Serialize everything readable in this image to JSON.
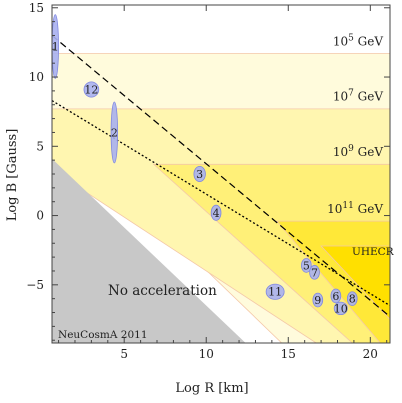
{
  "chart_data": {
    "type": "scatter",
    "xlabel": "Log R [km]",
    "ylabel": "Log B [Gauss]",
    "xlim": [
      0.6,
      21.2
    ],
    "ylim": [
      -9.2,
      15.2
    ],
    "x_ticks": [
      "5",
      "10",
      "15",
      "20"
    ],
    "y_ticks": [
      "15",
      "10",
      "5",
      "0",
      "−5"
    ],
    "grid": false,
    "colors": {
      "band_1": "#fffbdc",
      "band_2": "#fff6b0",
      "band_3": "#fff078",
      "band_4": "#ffe838",
      "band_5": "#ffe000",
      "edge": "#f4c8a8",
      "no_acceleration": "#c8c8c8",
      "ellipse": "#a8b0f0",
      "ellipse_stroke": "#8088e0"
    },
    "energy_labels": [
      {
        "text": "10^5 GeV",
        "base": "10",
        "exp": "5",
        "unit": "GeV",
        "logE": 5
      },
      {
        "text": "10^7 GeV",
        "base": "10",
        "exp": "7",
        "unit": "GeV",
        "logE": 7
      },
      {
        "text": "10^9 GeV",
        "base": "10",
        "exp": "9",
        "unit": "GeV",
        "logE": 9
      },
      {
        "text": "10^11 GeV",
        "base": "10",
        "exp": "11",
        "unit": "GeV",
        "logE": 11
      }
    ],
    "region_label": "UHECR",
    "no_acceleration_label": "No acceleration",
    "credit": "NeuCosmA 2011",
    "dashed_line": {
      "x": [
        0.6,
        21.2
      ],
      "y": [
        13.0,
        -7.3
      ]
    },
    "dotted_line": {
      "x": [
        0.6,
        21.2
      ],
      "y": [
        8.3,
        -6.5
      ]
    },
    "sources": [
      {
        "id": "1",
        "x": 0.8,
        "y": 12.2,
        "rx": 0.2,
        "ry": 2.3
      },
      {
        "id": "12",
        "x": 3.0,
        "y": 9.1,
        "rx": 0.45,
        "ry": 0.55
      },
      {
        "id": "2",
        "x": 4.4,
        "y": 6.0,
        "rx": 0.2,
        "ry": 2.2
      },
      {
        "id": "3",
        "x": 9.6,
        "y": 3.0,
        "rx": 0.35,
        "ry": 0.55
      },
      {
        "id": "4",
        "x": 10.6,
        "y": 0.2,
        "rx": 0.3,
        "ry": 0.55
      },
      {
        "id": "5",
        "x": 16.1,
        "y": -3.6,
        "rx": 0.3,
        "ry": 0.5
      },
      {
        "id": "7",
        "x": 16.6,
        "y": -4.1,
        "rx": 0.3,
        "ry": 0.5
      },
      {
        "id": "11",
        "x": 14.2,
        "y": -5.5,
        "rx": 0.55,
        "ry": 0.55
      },
      {
        "id": "9",
        "x": 16.8,
        "y": -6.1,
        "rx": 0.3,
        "ry": 0.5
      },
      {
        "id": "6",
        "x": 17.9,
        "y": -5.8,
        "rx": 0.3,
        "ry": 0.5
      },
      {
        "id": "8",
        "x": 18.9,
        "y": -6.0,
        "rx": 0.3,
        "ry": 0.5
      },
      {
        "id": "10",
        "x": 18.2,
        "y": -6.7,
        "rx": 0.4,
        "ry": 0.45
      }
    ]
  }
}
